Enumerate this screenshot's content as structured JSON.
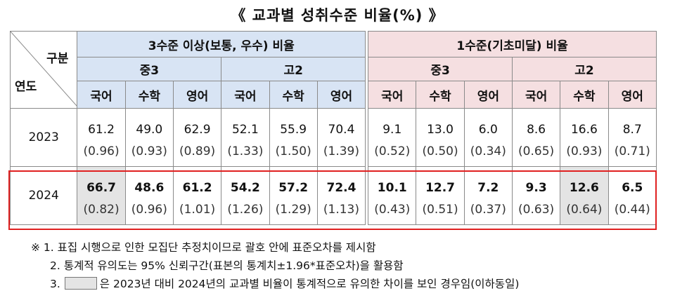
{
  "title": "《 교과별 성취수준 비율(%) 》",
  "corner": {
    "top": "구분",
    "bottom": "연도"
  },
  "groups": {
    "above_basic": "3수준 이상(보통, 우수) 비율",
    "below_basic": "1수준(기초미달) 비율"
  },
  "levels": [
    "중3",
    "고2",
    "중3",
    "고2"
  ],
  "subjects": [
    "국어",
    "수학",
    "영어",
    "국어",
    "수학",
    "영어",
    "국어",
    "수학",
    "영어",
    "국어",
    "수학",
    "영어"
  ],
  "rows": [
    {
      "year": "2023",
      "values": [
        "61.2",
        "49.0",
        "62.9",
        "52.1",
        "55.9",
        "70.4",
        "9.1",
        "13.0",
        "6.0",
        "8.6",
        "16.6",
        "8.7"
      ],
      "se": [
        "(0.96)",
        "(0.93)",
        "(0.89)",
        "(1.33)",
        "(1.50)",
        "(1.39)",
        "(0.52)",
        "(0.50)",
        "(0.34)",
        "(0.65)",
        "(0.93)",
        "(0.71)"
      ]
    },
    {
      "year": "2024",
      "values": [
        "66.7",
        "48.6",
        "61.2",
        "54.2",
        "57.2",
        "72.4",
        "10.1",
        "12.7",
        "7.2",
        "9.3",
        "12.6",
        "6.5"
      ],
      "se": [
        "(0.82)",
        "(0.96)",
        "(1.01)",
        "(1.26)",
        "(1.29)",
        "(1.13)",
        "(0.43)",
        "(0.51)",
        "(0.37)",
        "(0.63)",
        "(0.64)",
        "(0.44)"
      ],
      "significant": [
        true,
        false,
        false,
        false,
        false,
        false,
        false,
        false,
        false,
        false,
        true,
        false
      ]
    }
  ],
  "notes": {
    "n1": "※ 1. 표집 시행으로 인한 모집단 추정치이므로 괄호 안에 표준오차를 제시함",
    "n2": "2. 통계적 유의도는 95% 신뢰구간(표본의 통계치±1.96*표준오차)을 활용함",
    "n3_prefix": "3.",
    "n3_text": "은 2023년 대비 2024년의 교과별 비율이 통계적으로 유의한 차이를 보인 경우임(이하동일)"
  },
  "colors": {
    "blue_header": "#d8e4f4",
    "pink_header": "#f5dfe1",
    "significant_fill": "#e4e4e4",
    "highlight_border": "#e02020"
  }
}
